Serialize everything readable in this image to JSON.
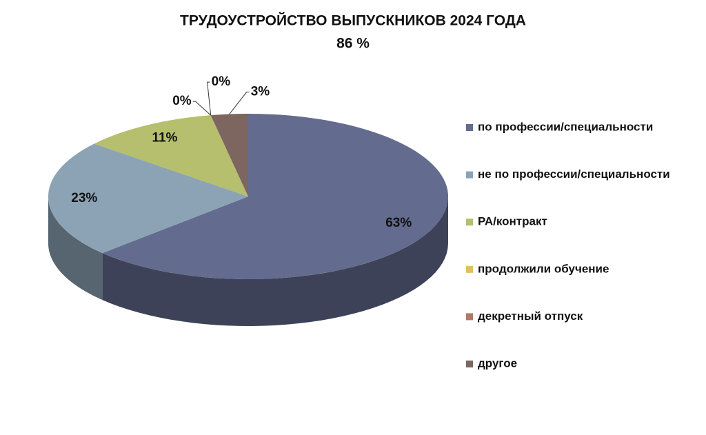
{
  "chart_data": {
    "type": "pie",
    "title": "ТРУДОУСТРОЙСТВО ВЫПУСКНИКОВ 2024 ГОДА",
    "subtitle": "86 %",
    "categories": [
      "по профессии/специальности",
      "не по профессии/специальности",
      "РА/контракт",
      "продолжили обучение",
      "декретный отпуск",
      "другое"
    ],
    "values": [
      63,
      23,
      11,
      0,
      0,
      3
    ],
    "value_labels": [
      "63%",
      "23%",
      "11%",
      "0%",
      "0%",
      "3%"
    ],
    "colors": [
      "#636b8e",
      "#8ba3b5",
      "#b5bf6e",
      "#e0c060",
      "#b07868",
      "#7d6560"
    ],
    "legend": "right"
  }
}
